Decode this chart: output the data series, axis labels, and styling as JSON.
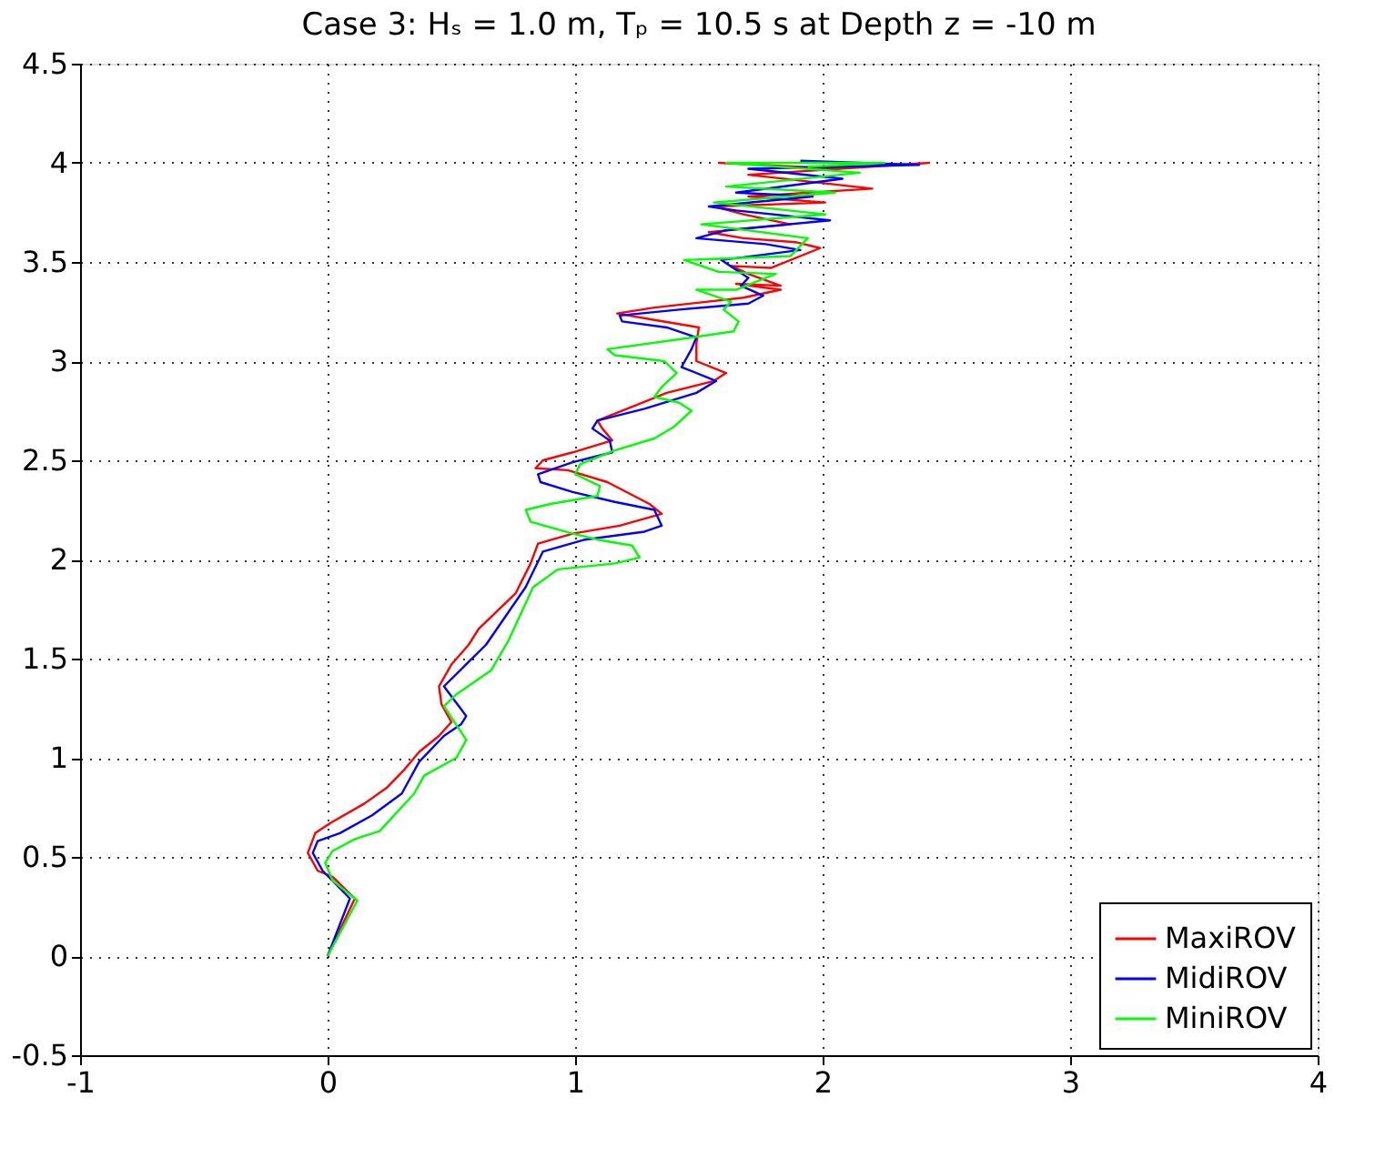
{
  "chart_data": {
    "type": "line",
    "title": "Case 3: Hₛ = 1.0 m, Tₚ = 10.5 s at Depth z = -10 m",
    "xlim": [
      -1,
      4
    ],
    "xticks": [
      -1,
      0,
      1,
      2,
      3,
      4
    ],
    "ylim": [
      -0.5,
      4.5
    ],
    "yticks": [
      -0.5,
      0,
      0.5,
      1,
      1.5,
      2,
      2.5,
      3,
      3.5,
      4,
      4.5
    ],
    "grid": true,
    "legend": "bottom right",
    "marker": "none",
    "line_style": "solid",
    "series": [
      {
        "name": "MaxiROV",
        "color": "#ff0000",
        "x": [
          0,
          0.11,
          0.02,
          -0.04,
          -0.08,
          -0.05,
          0.01,
          0.15,
          0.24,
          0.31,
          0.37,
          0.45,
          0.5,
          0.46,
          0.45,
          0.5,
          0.57,
          0.61,
          0.76,
          0.82,
          0.85,
          0.99,
          1.18,
          1.35,
          1.3,
          1.13,
          0.97,
          0.84,
          0.87,
          0.99,
          1.15,
          1.11,
          1.09,
          1.21,
          1.37,
          1.56,
          1.61,
          1.49,
          1.49,
          1.5,
          1.31,
          1.17,
          1.32,
          1.68,
          1.83,
          1.65,
          1.83,
          1.7,
          1.63,
          1.79,
          1.99,
          1.89,
          1.68,
          1.54,
          1.87,
          1.68,
          1.56,
          2.01,
          1.7,
          2.2,
          1.7,
          2.43,
          2.06,
          1.58
        ],
        "values": [
          0,
          0.29,
          0.4,
          0.43,
          0.52,
          0.62,
          0.67,
          0.77,
          0.85,
          0.94,
          1.03,
          1.11,
          1.18,
          1.27,
          1.36,
          1.47,
          1.57,
          1.65,
          1.83,
          1.98,
          2.08,
          2.13,
          2.17,
          2.23,
          2.28,
          2.39,
          2.45,
          2.46,
          2.5,
          2.54,
          2.6,
          2.66,
          2.7,
          2.76,
          2.84,
          2.9,
          2.94,
          3.0,
          3.09,
          3.17,
          3.21,
          3.24,
          3.27,
          3.32,
          3.36,
          3.39,
          3.38,
          3.44,
          3.48,
          3.47,
          3.57,
          3.6,
          3.62,
          3.65,
          3.69,
          3.74,
          3.78,
          3.8,
          3.83,
          3.87,
          3.94,
          4.0,
          3.97,
          4.0
        ]
      },
      {
        "name": "MidiROV",
        "color": "#0000ff",
        "x": [
          0,
          0.09,
          -0.02,
          -0.06,
          -0.04,
          0.05,
          0.18,
          0.3,
          0.37,
          0.47,
          0.54,
          0.56,
          0.47,
          0.64,
          0.8,
          0.87,
          1.04,
          1.28,
          1.35,
          1.32,
          1.16,
          0.99,
          0.86,
          0.85,
          0.99,
          1.15,
          1.14,
          1.07,
          1.09,
          1.28,
          1.49,
          1.57,
          1.43,
          1.47,
          1.49,
          1.37,
          1.19,
          1.18,
          1.42,
          1.7,
          1.76,
          1.67,
          1.7,
          1.59,
          1.91,
          1.77,
          1.49,
          1.61,
          2.03,
          1.65,
          1.54,
          1.96,
          1.65,
          2.08,
          1.7,
          2.39,
          1.91
        ],
        "values": [
          0,
          0.29,
          0.43,
          0.52,
          0.58,
          0.62,
          0.71,
          0.82,
          0.98,
          1.11,
          1.17,
          1.21,
          1.36,
          1.57,
          1.86,
          2.04,
          2.1,
          2.14,
          2.17,
          2.25,
          2.29,
          2.34,
          2.39,
          2.43,
          2.49,
          2.54,
          2.6,
          2.66,
          2.7,
          2.76,
          2.84,
          2.9,
          2.97,
          3.06,
          3.12,
          3.17,
          3.2,
          3.23,
          3.26,
          3.29,
          3.33,
          3.38,
          3.42,
          3.51,
          3.56,
          3.59,
          3.62,
          3.66,
          3.71,
          3.76,
          3.78,
          3.83,
          3.85,
          3.92,
          3.97,
          3.99,
          4.01
        ]
      },
      {
        "name": "MiniROV",
        "color": "#00ff00",
        "x": [
          0,
          0.12,
          0.02,
          -0.01,
          0.02,
          0.11,
          0.21,
          0.35,
          0.39,
          0.52,
          0.56,
          0.47,
          0.52,
          0.66,
          0.73,
          0.83,
          0.93,
          1.16,
          1.26,
          1.23,
          1.09,
          0.99,
          0.82,
          0.8,
          0.9,
          1.09,
          1.1,
          1.0,
          1.02,
          1.16,
          1.32,
          1.4,
          1.47,
          1.42,
          1.32,
          1.35,
          1.41,
          1.36,
          1.16,
          1.13,
          1.42,
          1.64,
          1.66,
          1.6,
          1.63,
          1.49,
          1.65,
          1.81,
          1.58,
          1.44,
          1.87,
          1.94,
          1.51,
          2.01,
          1.56,
          2.05,
          1.61,
          2.15,
          1.61,
          2.25,
          1.94
        ],
        "values": [
          0,
          0.28,
          0.38,
          0.47,
          0.53,
          0.59,
          0.63,
          0.82,
          0.91,
          1.0,
          1.09,
          1.26,
          1.32,
          1.44,
          1.59,
          1.86,
          1.95,
          1.98,
          2.01,
          2.07,
          2.1,
          2.13,
          2.19,
          2.25,
          2.28,
          2.32,
          2.37,
          2.43,
          2.48,
          2.55,
          2.61,
          2.67,
          2.75,
          2.79,
          2.82,
          2.87,
          2.94,
          3.0,
          3.03,
          3.06,
          3.11,
          3.15,
          3.2,
          3.26,
          3.3,
          3.36,
          3.36,
          3.44,
          3.45,
          3.51,
          3.53,
          3.62,
          3.69,
          3.74,
          3.8,
          3.85,
          3.88,
          3.95,
          4.0,
          4.0,
          3.98
        ]
      }
    ]
  }
}
